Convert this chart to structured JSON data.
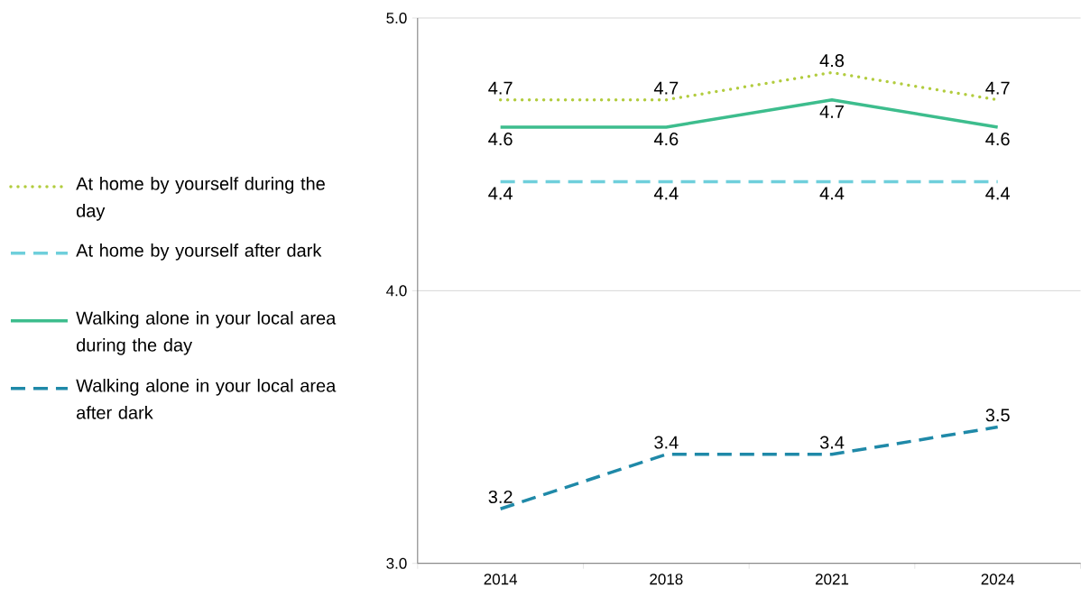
{
  "chart_data": {
    "type": "line",
    "categories": [
      "2014",
      "2018",
      "2021",
      "2024"
    ],
    "series": [
      {
        "name": "At home by yourself during the day",
        "color": "#b2cc3e",
        "line_style": "dotted",
        "values": [
          4.7,
          4.7,
          4.8,
          4.7
        ]
      },
      {
        "name": "At home by yourself after dark",
        "color": "#6fcfdb",
        "line_style": "dashed",
        "values": [
          4.4,
          4.4,
          4.4,
          4.4
        ]
      },
      {
        "name": "Walking alone in your local area during the day",
        "color": "#3dbd8d",
        "line_style": "solid",
        "values": [
          4.6,
          4.6,
          4.7,
          4.6
        ]
      },
      {
        "name": "Walking alone in your local area after dark",
        "color": "#1f89a8",
        "line_style": "dashed",
        "values": [
          3.2,
          3.4,
          3.4,
          3.5
        ]
      }
    ],
    "ylim": [
      3.0,
      5.0
    ],
    "yticks": [
      {
        "value": 3.0,
        "label": "3.0"
      },
      {
        "value": 4.0,
        "label": "4.0"
      },
      {
        "value": 5.0,
        "label": "5.0"
      }
    ],
    "grid": "y",
    "legend": "left",
    "data_labels": true,
    "marker": "none"
  }
}
